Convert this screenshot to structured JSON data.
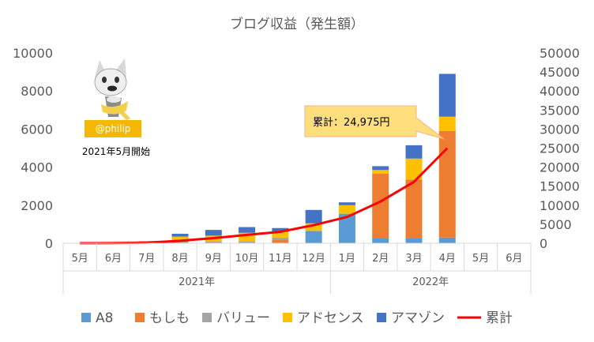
{
  "chart_data": {
    "type": "bar",
    "title": "ブログ収益（発生額）",
    "categories": [
      "5月",
      "6月",
      "7月",
      "8月",
      "9月",
      "10月",
      "11月",
      "12月",
      "1月",
      "2月",
      "3月",
      "4月",
      "5月",
      "6月"
    ],
    "year_groups": [
      {
        "label": "2021年",
        "span": 8
      },
      {
        "label": "2022年",
        "span": 6
      }
    ],
    "series": [
      {
        "name": "A8",
        "color": "#5B9BD5",
        "values": [
          0,
          0,
          0,
          0,
          0,
          0,
          0,
          650,
          1550,
          250,
          250,
          300,
          0,
          0
        ]
      },
      {
        "name": "もしも",
        "color": "#ED7D31",
        "values": [
          0,
          0,
          0,
          0,
          0,
          0,
          200,
          0,
          0,
          3400,
          3100,
          5600,
          0,
          0
        ]
      },
      {
        "name": "バリュー",
        "color": "#A5A5A5",
        "values": [
          0,
          0,
          0,
          150,
          100,
          100,
          100,
          0,
          0,
          0,
          0,
          0,
          0,
          0
        ]
      },
      {
        "name": "アドセンス",
        "color": "#FFC000",
        "values": [
          0,
          0,
          120,
          200,
          300,
          450,
          300,
          400,
          450,
          200,
          1100,
          750,
          0,
          0
        ]
      },
      {
        "name": "アマゾン",
        "color": "#4472C4",
        "values": [
          0,
          0,
          0,
          150,
          300,
          300,
          200,
          700,
          150,
          200,
          700,
          2250,
          0,
          0
        ]
      }
    ],
    "cumulative": {
      "name": "累計",
      "color": "#FF0000",
      "values": [
        20,
        40,
        160,
        660,
        1360,
        2210,
        3010,
        4760,
        6910,
        10960,
        16110,
        24975,
        null,
        null
      ]
    },
    "ylim_left": [
      0,
      10000
    ],
    "yticks_left": [
      "0",
      "2000",
      "4000",
      "6000",
      "8000",
      "10000"
    ],
    "ylim_right": [
      0,
      50000
    ],
    "yticks_right": [
      "0",
      "5000",
      "10000",
      "15000",
      "20000",
      "25000",
      "30000",
      "35000",
      "40000",
      "45000",
      "50000"
    ],
    "grid": false,
    "legend_position": "bottom",
    "callout": {
      "text": "累計：24,975円"
    },
    "badge": {
      "text": "@philip",
      "caption": "2021年5月開始"
    }
  }
}
